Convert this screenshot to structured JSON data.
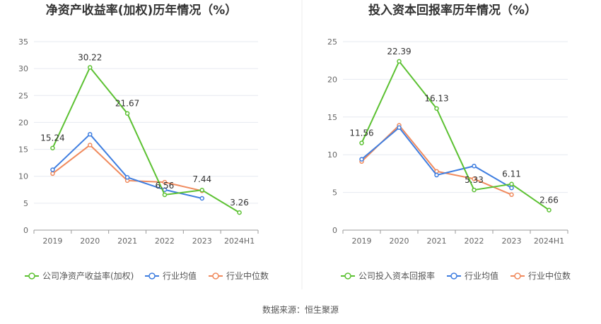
{
  "source_note": "数据来源：恒生聚源",
  "chart_data": [
    {
      "type": "line",
      "title": "净资产收益率(加权)历年情况（%）",
      "categories": [
        "2019",
        "2020",
        "2021",
        "2022",
        "2023",
        "2024H1"
      ],
      "ylim": [
        0,
        35
      ],
      "yticks": [
        "0",
        "5",
        "10",
        "15",
        "20",
        "25",
        "30",
        "35"
      ],
      "grid": true,
      "legend_position": "bottom",
      "series": [
        {
          "name": "公司净资产收益率(加权)",
          "color": "#5cc132",
          "values": [
            15.24,
            30.22,
            21.67,
            6.56,
            7.44,
            3.26
          ],
          "labels": [
            "15.24",
            "30.22",
            "21.67",
            "6.56",
            "7.44",
            "3.26"
          ]
        },
        {
          "name": "行业均值",
          "color": "#3f7ee0",
          "values": [
            11.2,
            17.8,
            9.8,
            7.5,
            5.9,
            null
          ]
        },
        {
          "name": "行业中位数",
          "color": "#f08a5d",
          "values": [
            10.5,
            15.8,
            9.2,
            8.9,
            7.3,
            null
          ]
        }
      ]
    },
    {
      "type": "line",
      "title": "投入资本回报率历年情况（%）",
      "categories": [
        "2019",
        "2020",
        "2021",
        "2022",
        "2023",
        "2024H1"
      ],
      "ylim": [
        0,
        25
      ],
      "yticks": [
        "0",
        "5",
        "10",
        "15",
        "20",
        "25"
      ],
      "grid": true,
      "legend_position": "bottom",
      "series": [
        {
          "name": "公司投入资本回报率",
          "color": "#5cc132",
          "values": [
            11.56,
            22.39,
            16.13,
            5.33,
            6.11,
            2.66
          ],
          "labels": [
            "11.56",
            "22.39",
            "16.13",
            "5.33",
            "6.11",
            "2.66"
          ]
        },
        {
          "name": "行业均值",
          "color": "#3f7ee0",
          "values": [
            9.4,
            13.6,
            7.3,
            8.5,
            5.6,
            null
          ]
        },
        {
          "name": "行业中位数",
          "color": "#f08a5d",
          "values": [
            9.1,
            13.9,
            7.8,
            6.8,
            4.7,
            null
          ]
        }
      ]
    }
  ]
}
